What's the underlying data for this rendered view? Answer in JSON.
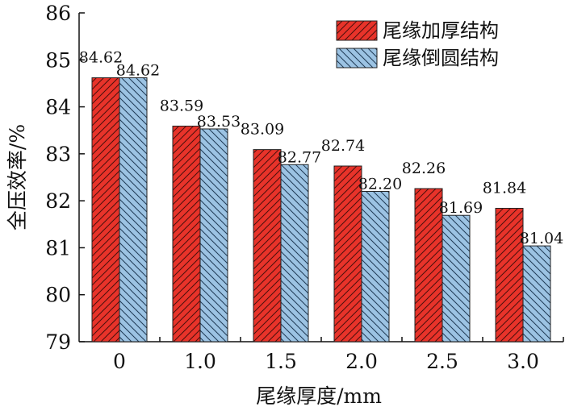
{
  "chart_data": {
    "type": "bar",
    "xlabel": "尾缘厚度/mm",
    "ylabel": "全压效率/%",
    "ylim": [
      79,
      86
    ],
    "yticks": [
      79,
      80,
      81,
      82,
      83,
      84,
      85,
      86
    ],
    "categories": [
      "0",
      "1.0",
      "1.5",
      "2.0",
      "2.5",
      "3.0"
    ],
    "series": [
      {
        "name": "尾缘加厚结构",
        "values": [
          84.62,
          83.59,
          83.09,
          82.74,
          82.26,
          81.84
        ],
        "labels": [
          "84.62",
          "83.59",
          "83.09",
          "82.74",
          "82.26",
          "81.84"
        ],
        "color": "#e8332a"
      },
      {
        "name": "尾缘倒圆结构",
        "values": [
          84.62,
          83.53,
          82.77,
          82.2,
          81.69,
          81.04
        ],
        "labels": [
          "84.62",
          "83.53",
          "82.77",
          "82.20",
          "81.69",
          "81.04"
        ],
        "color": "#9cc3e3"
      }
    ],
    "legend_position": "top-right",
    "grid": false
  }
}
